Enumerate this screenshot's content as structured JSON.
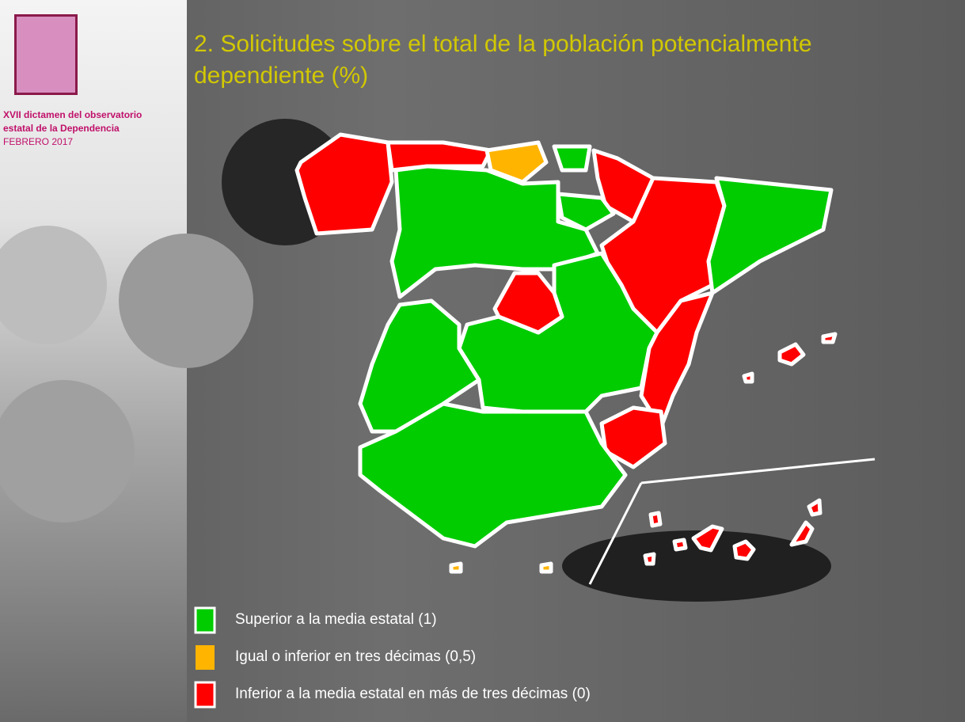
{
  "header": {
    "org_lines": [
      "XVII dictamen del observatorio",
      "estatal de la Dependencia"
    ],
    "date": "FEBRERO 2017"
  },
  "title": "2. Solicitudes sobre el total de la población potencialmente dependiente (%)",
  "legend": [
    {
      "label": "Superior a la media estatal (1)",
      "color": "#00cc00"
    },
    {
      "label": "Igual o inferior en tres décimas (0,5)",
      "color": "#ffb400"
    },
    {
      "label": "Inferior a la media estatal en más de tres décimas (0)",
      "color": "#ff0000"
    }
  ]
}
